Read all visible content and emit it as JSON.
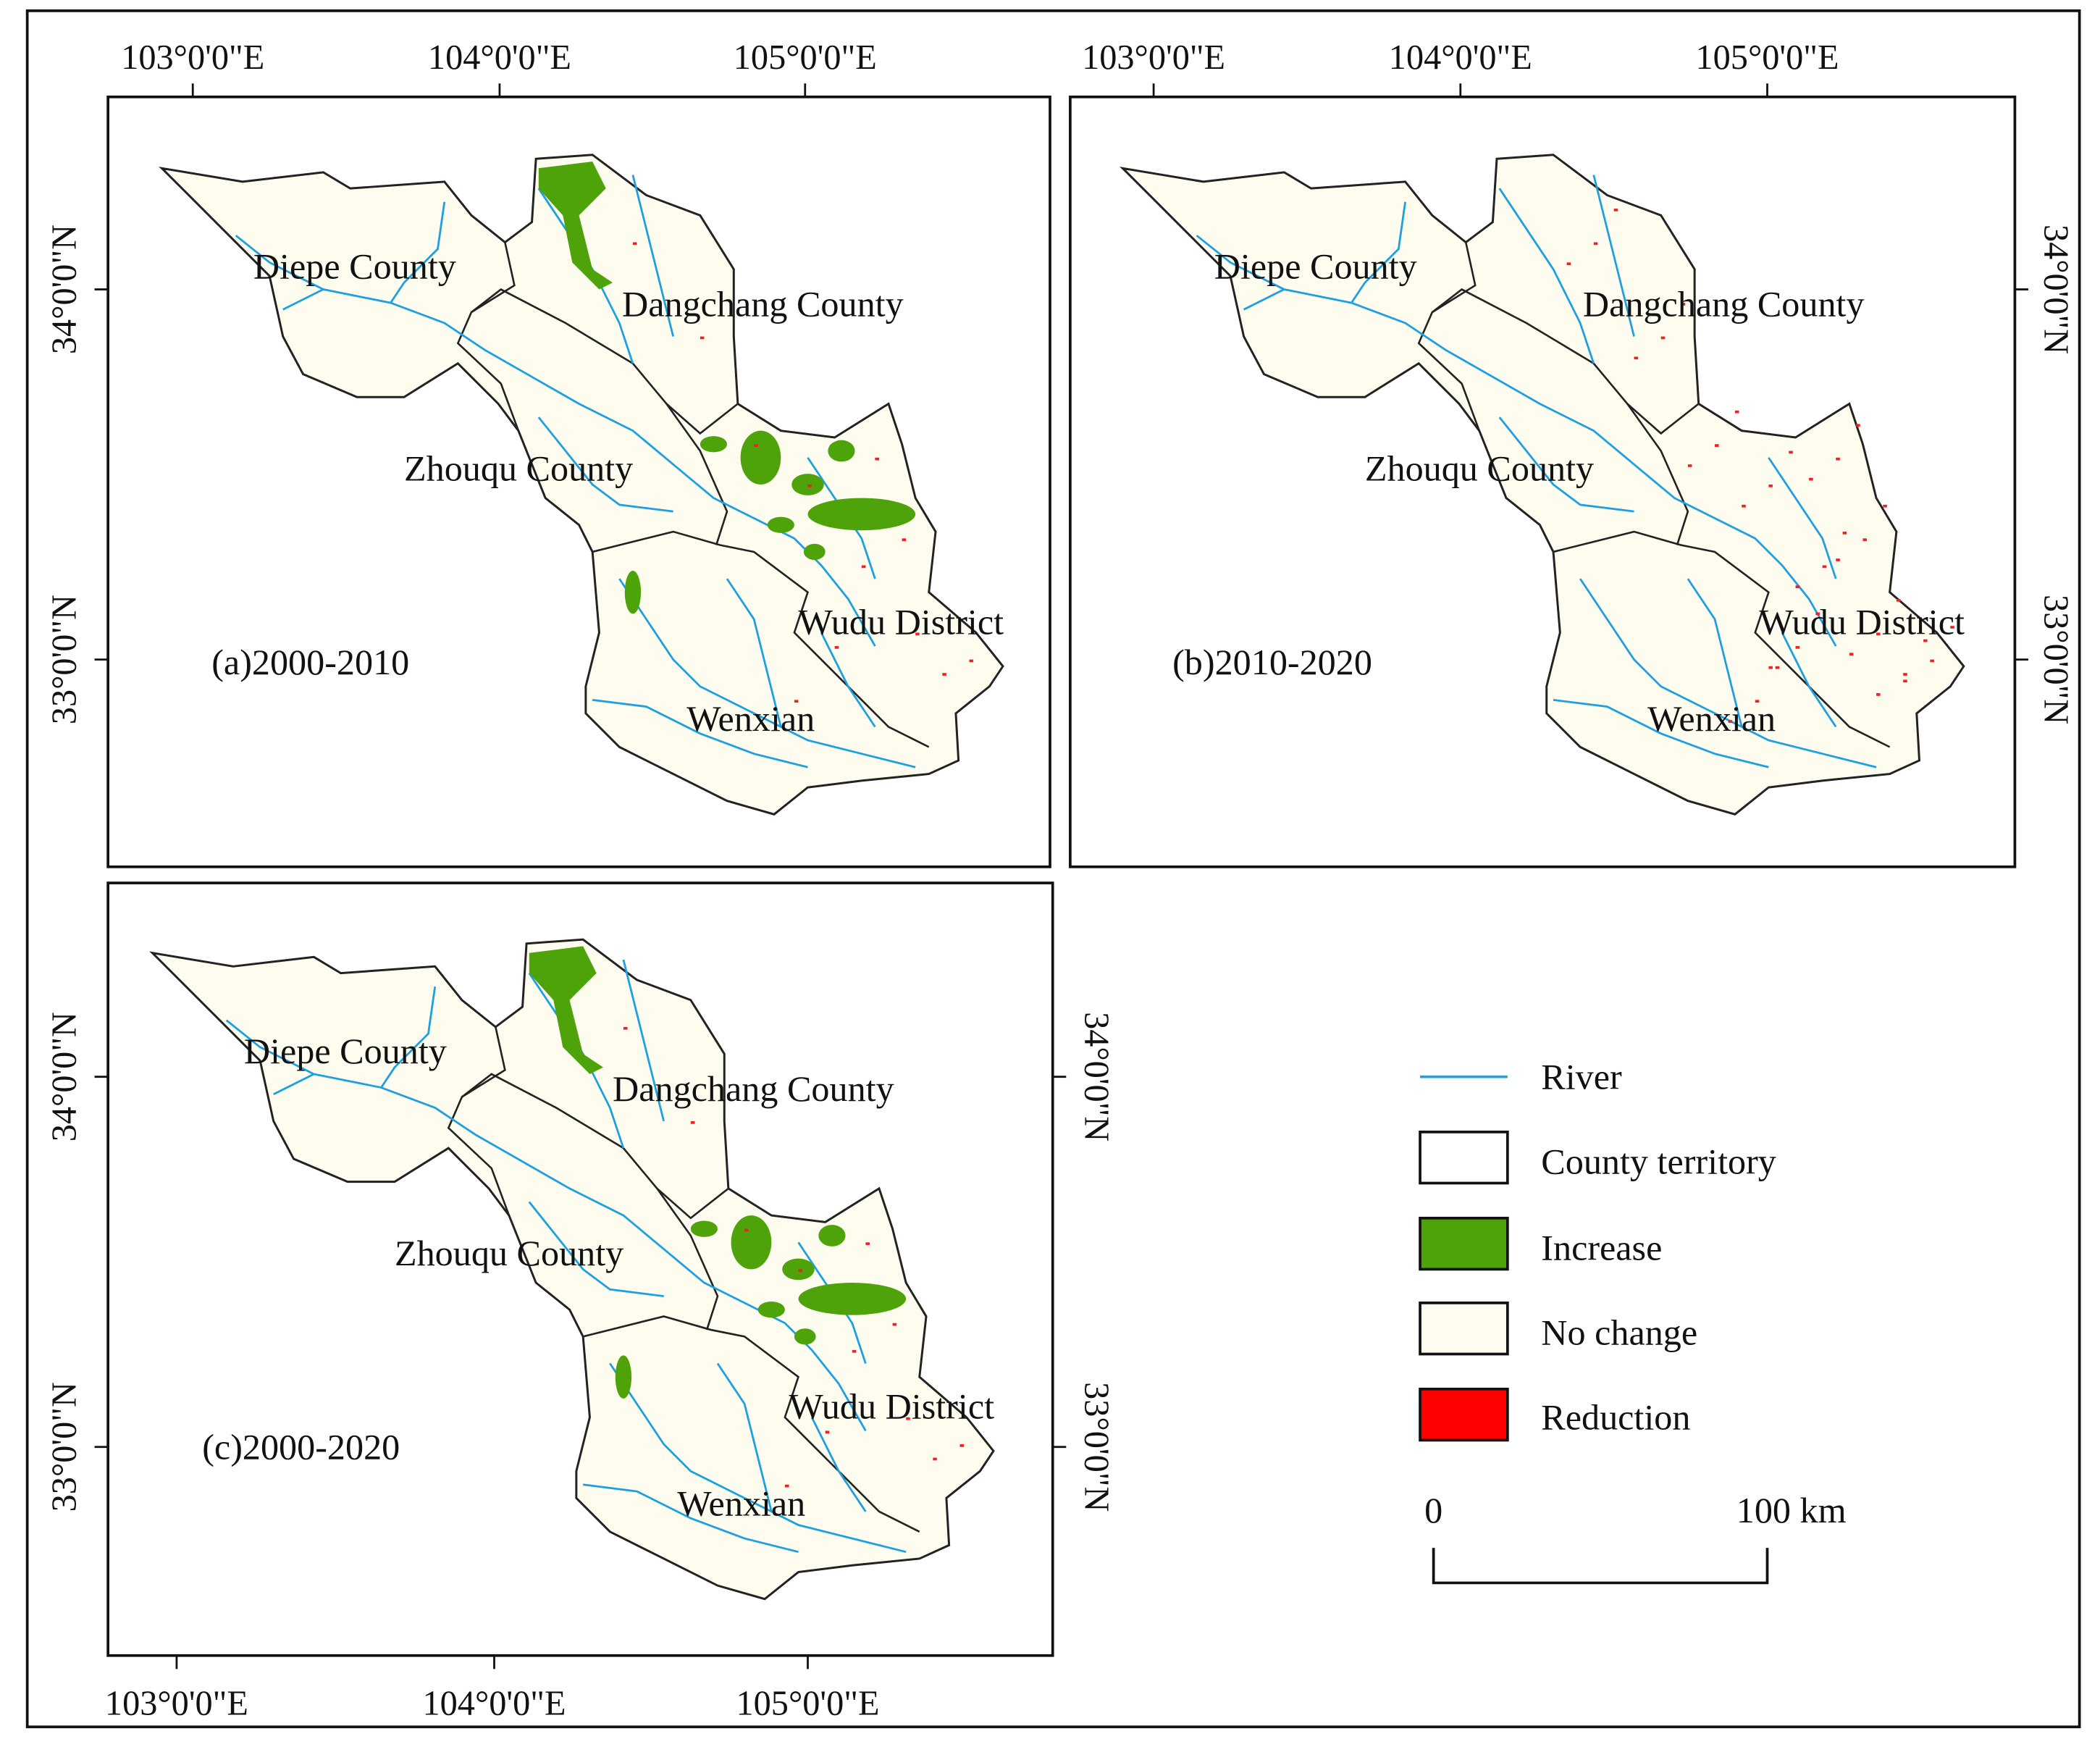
{
  "panels": [
    {
      "label": "(a)2000-2010",
      "counties": [
        "Diepe County",
        "Dangchang County",
        "Zhouqu County",
        "Wudu District",
        "Wenxian"
      ],
      "x_tick_labels": [
        "103°0'0\"E",
        "104°0'0\"E",
        "105°0'0\"E"
      ],
      "y_tick_labels": [
        "34°0'0\"N",
        "33°0'0\"N"
      ]
    },
    {
      "label": "(b)2010-2020",
      "counties": [
        "Diepe County",
        "Dangchang County",
        "Zhouqu County",
        "Wudu District",
        "Wenxian"
      ],
      "x_tick_labels": [
        "103°0'0\"E",
        "104°0'0\"E",
        "105°0'0\"E"
      ],
      "y_tick_labels": [
        "34°0'0\"N",
        "33°0'0\"N"
      ]
    },
    {
      "label": "(c)2000-2020",
      "counties": [
        "Diepe County",
        "Dangchang County",
        "Zhouqu County",
        "Wudu District",
        "Wenxian"
      ],
      "x_tick_labels": [
        "103°0'0\"E",
        "104°0'0\"E",
        "105°0'0\"E"
      ],
      "y_tick_labels": [
        "34°0'0\"N",
        "33°0'0\"N"
      ],
      "y_tick_labels_right": [
        "34°0'0\"N",
        "33°0'0\"N"
      ]
    }
  ],
  "legend": [
    "River",
    "County territory",
    "Increase",
    "No change",
    "Reduction"
  ],
  "scale_bar": {
    "start": "0",
    "end": "100  km"
  }
}
